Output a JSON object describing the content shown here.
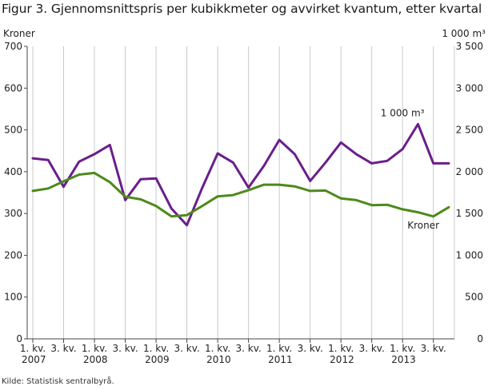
{
  "page": {
    "title": "Figur 3. Gjennomsnittspris per kubikkmeter og avvirket kvantum, etter kvartal",
    "source": "Kilde: Statistisk sentralbyrå."
  },
  "chart_data": {
    "type": "line",
    "title": "Figur 3. Gjennomsnittspris per kubikkmeter og avvirket kvantum, etter kvartal",
    "ylabel_left": "Kroner",
    "ylabel_right": "1 000 m³",
    "ylim_left": [
      0,
      700
    ],
    "ylim_right": [
      0,
      3500
    ],
    "yticks_left": [
      "0",
      "100",
      "200",
      "300",
      "400",
      "500",
      "600",
      "700"
    ],
    "yticks_right": [
      "0",
      "500",
      "1 000",
      "1 500",
      "2 000",
      "2 500",
      "3 000",
      "3 500"
    ],
    "grid": "vertical",
    "x": [
      "2007 K1",
      "2007 K2",
      "2007 K3",
      "2007 K4",
      "2008 K1",
      "2008 K2",
      "2008 K3",
      "2008 K4",
      "2009 K1",
      "2009 K2",
      "2009 K3",
      "2009 K4",
      "2010 K1",
      "2010 K2",
      "2010 K3",
      "2010 K4",
      "2011 K1",
      "2011 K2",
      "2011 K3",
      "2011 K4",
      "2012 K1",
      "2012 K2",
      "2012 K3",
      "2012 K4",
      "2013 K1",
      "2013 K2",
      "2013 K3",
      "2013 K4"
    ],
    "xtick_labels": [
      {
        "index": 0,
        "line1": "1. kv.",
        "line2": "2007"
      },
      {
        "index": 2,
        "line1": "3. kv.",
        "line2": ""
      },
      {
        "index": 4,
        "line1": "1. kv.",
        "line2": "2008"
      },
      {
        "index": 6,
        "line1": "3. kv.",
        "line2": ""
      },
      {
        "index": 8,
        "line1": "1. kv.",
        "line2": "2009"
      },
      {
        "index": 10,
        "line1": "3. kv.",
        "line2": ""
      },
      {
        "index": 12,
        "line1": "1. kv.",
        "line2": "2010"
      },
      {
        "index": 14,
        "line1": "3. kv.",
        "line2": ""
      },
      {
        "index": 16,
        "line1": "1. kv.",
        "line2": "2011"
      },
      {
        "index": 18,
        "line1": "3. kv.",
        "line2": ""
      },
      {
        "index": 20,
        "line1": "1. kv.",
        "line2": "2012"
      },
      {
        "index": 22,
        "line1": "3. kv.",
        "line2": ""
      },
      {
        "index": 24,
        "line1": "1. kv.",
        "line2": "2013"
      },
      {
        "index": 26,
        "line1": "3. kv.",
        "line2": ""
      }
    ],
    "series": [
      {
        "name": "1 000 m³",
        "axis": "right",
        "color": "#6b1e8c",
        "values": [
          2160,
          2140,
          1820,
          2120,
          2210,
          2320,
          1660,
          1910,
          1920,
          1560,
          1360,
          1810,
          2220,
          2110,
          1810,
          2070,
          2380,
          2210,
          1890,
          2110,
          2350,
          2210,
          2100,
          2130,
          2270,
          2570,
          2100,
          2100
        ]
      },
      {
        "name": "Kroner",
        "axis": "left",
        "color": "#4c8a1a",
        "values": [
          354,
          360,
          377,
          393,
          397,
          375,
          340,
          334,
          318,
          293,
          296,
          318,
          341,
          344,
          356,
          369,
          369,
          365,
          354,
          355,
          336,
          332,
          320,
          321,
          310,
          303,
          293,
          315
        ]
      }
    ]
  }
}
